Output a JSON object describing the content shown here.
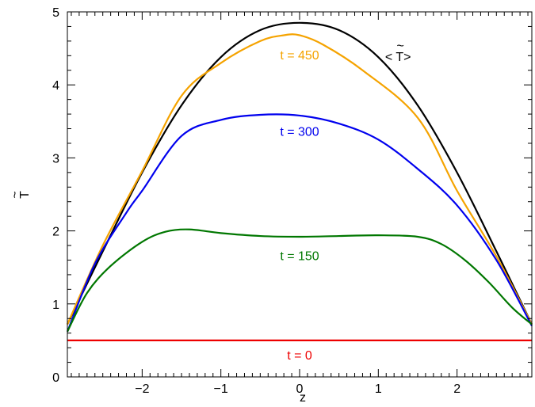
{
  "chart_data": {
    "type": "line",
    "xlabel": "z",
    "ylabel": "T",
    "ylabel_accent": "~",
    "xlim": [
      -2.95,
      2.95
    ],
    "ylim": [
      0,
      5
    ],
    "x_ticks": [
      -2,
      -1,
      0,
      1,
      2
    ],
    "x_tick_labels": [
      "−2",
      "−1",
      "0",
      "1",
      "2"
    ],
    "y_ticks": [
      0,
      1,
      2,
      3,
      4,
      5
    ],
    "y_tick_labels": [
      "0",
      "1",
      "2",
      "3",
      "4",
      "5"
    ],
    "grid": false,
    "series": [
      {
        "key": "mean",
        "color": "#000000",
        "x": [
          -2.95,
          -2.5,
          -2.0,
          -1.5,
          -1.0,
          -0.5,
          0.0,
          0.5,
          1.0,
          1.5,
          2.0,
          2.5,
          2.95
        ],
        "y": [
          0.72,
          1.72,
          2.8,
          3.72,
          4.38,
          4.75,
          4.85,
          4.75,
          4.38,
          3.72,
          2.8,
          1.72,
          0.72
        ]
      },
      {
        "key": "t450",
        "color": "#f5a300",
        "x": [
          -2.95,
          -2.5,
          -2.0,
          -1.5,
          -1.0,
          -0.5,
          -0.2,
          0.0,
          0.3,
          0.8,
          1.5,
          2.0,
          2.5,
          2.95
        ],
        "y": [
          0.72,
          1.8,
          2.82,
          3.85,
          4.3,
          4.6,
          4.68,
          4.68,
          4.55,
          4.2,
          3.55,
          2.55,
          1.65,
          0.72
        ]
      },
      {
        "key": "t300",
        "color": "#0000ee",
        "x": [
          -2.95,
          -2.6,
          -2.2,
          -2.0,
          -1.5,
          -1.0,
          -0.5,
          0.0,
          0.5,
          1.0,
          1.5,
          2.0,
          2.5,
          2.95
        ],
        "y": [
          0.62,
          1.55,
          2.25,
          2.55,
          3.3,
          3.52,
          3.59,
          3.58,
          3.47,
          3.25,
          2.85,
          2.35,
          1.6,
          0.7
        ]
      },
      {
        "key": "t150",
        "color": "#007700",
        "x": [
          -2.95,
          -2.7,
          -2.4,
          -2.0,
          -1.7,
          -1.4,
          -1.0,
          -0.5,
          0.0,
          0.5,
          1.0,
          1.5,
          1.8,
          2.1,
          2.4,
          2.7,
          2.95
        ],
        "y": [
          0.62,
          1.15,
          1.52,
          1.85,
          1.99,
          2.02,
          1.97,
          1.93,
          1.92,
          1.93,
          1.94,
          1.92,
          1.82,
          1.6,
          1.3,
          0.95,
          0.72
        ]
      },
      {
        "key": "t0",
        "color": "#ee0000",
        "x": [
          -2.95,
          2.95
        ],
        "y": [
          0.5,
          0.5
        ]
      }
    ],
    "annotations": [
      {
        "key": "t450",
        "text": "t = 450",
        "color": "#f5a300",
        "x": 0.0,
        "y": 4.35
      },
      {
        "key": "t300",
        "text": "t = 300",
        "color": "#0000ee",
        "x": 0.0,
        "y": 3.3
      },
      {
        "key": "t150",
        "text": "t = 150",
        "color": "#007700",
        "x": 0.0,
        "y": 1.6
      },
      {
        "key": "t0",
        "text": "t = 0",
        "color": "#ee0000",
        "x": 0.0,
        "y": 0.24
      },
      {
        "key": "mean",
        "text": "< T>",
        "accent": "~",
        "color": "#000000",
        "x": 1.25,
        "y": 4.33
      }
    ]
  }
}
